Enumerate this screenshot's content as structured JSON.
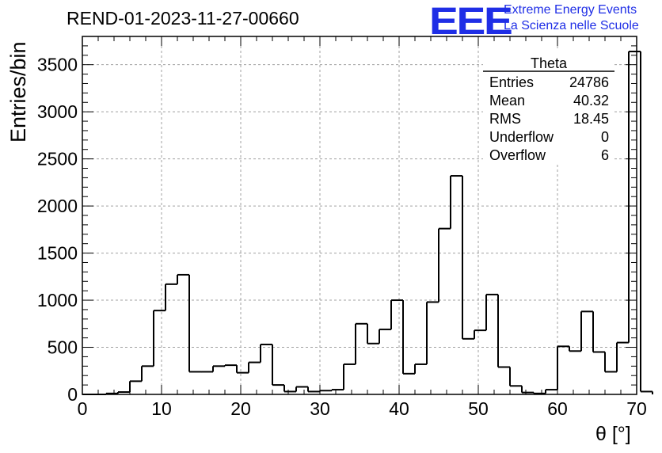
{
  "chart_data": {
    "type": "bar",
    "title": "REND-01-2023-11-27-00660",
    "xlabel": "θ [°]",
    "ylabel": "Entries/bin",
    "xlim": [
      0,
      70
    ],
    "ylim": [
      0,
      3800
    ],
    "grid": true,
    "x_ticks": [
      "0",
      "10",
      "20",
      "30",
      "40",
      "50",
      "60",
      "70"
    ],
    "y_ticks": [
      "0",
      "500",
      "1000",
      "1500",
      "2000",
      "2500",
      "3000",
      "3500"
    ],
    "bin_width": 1.5,
    "bin_start": 0,
    "values": [
      0,
      0,
      10,
      25,
      140,
      300,
      890,
      1170,
      1270,
      240,
      240,
      300,
      310,
      230,
      340,
      530,
      100,
      30,
      80,
      30,
      40,
      50,
      320,
      750,
      540,
      690,
      1000,
      220,
      320,
      980,
      1760,
      2320,
      590,
      680,
      1060,
      290,
      90,
      20,
      10,
      50,
      510,
      460,
      880,
      450,
      240,
      550,
      3640,
      30
    ],
    "stats": {
      "name": "Theta",
      "rows": [
        {
          "label": "Entries",
          "value": "24786"
        },
        {
          "label": "Mean",
          "value": "40.32"
        },
        {
          "label": "RMS",
          "value": "18.45"
        },
        {
          "label": "Underflow",
          "value": "0"
        },
        {
          "label": "Overflow",
          "value": "6"
        }
      ]
    }
  },
  "logo": {
    "mark": "EEE",
    "line1": "Extreme Energy Events",
    "line2": "La Scienza nelle Scuole",
    "color": "#1f2ee6"
  }
}
